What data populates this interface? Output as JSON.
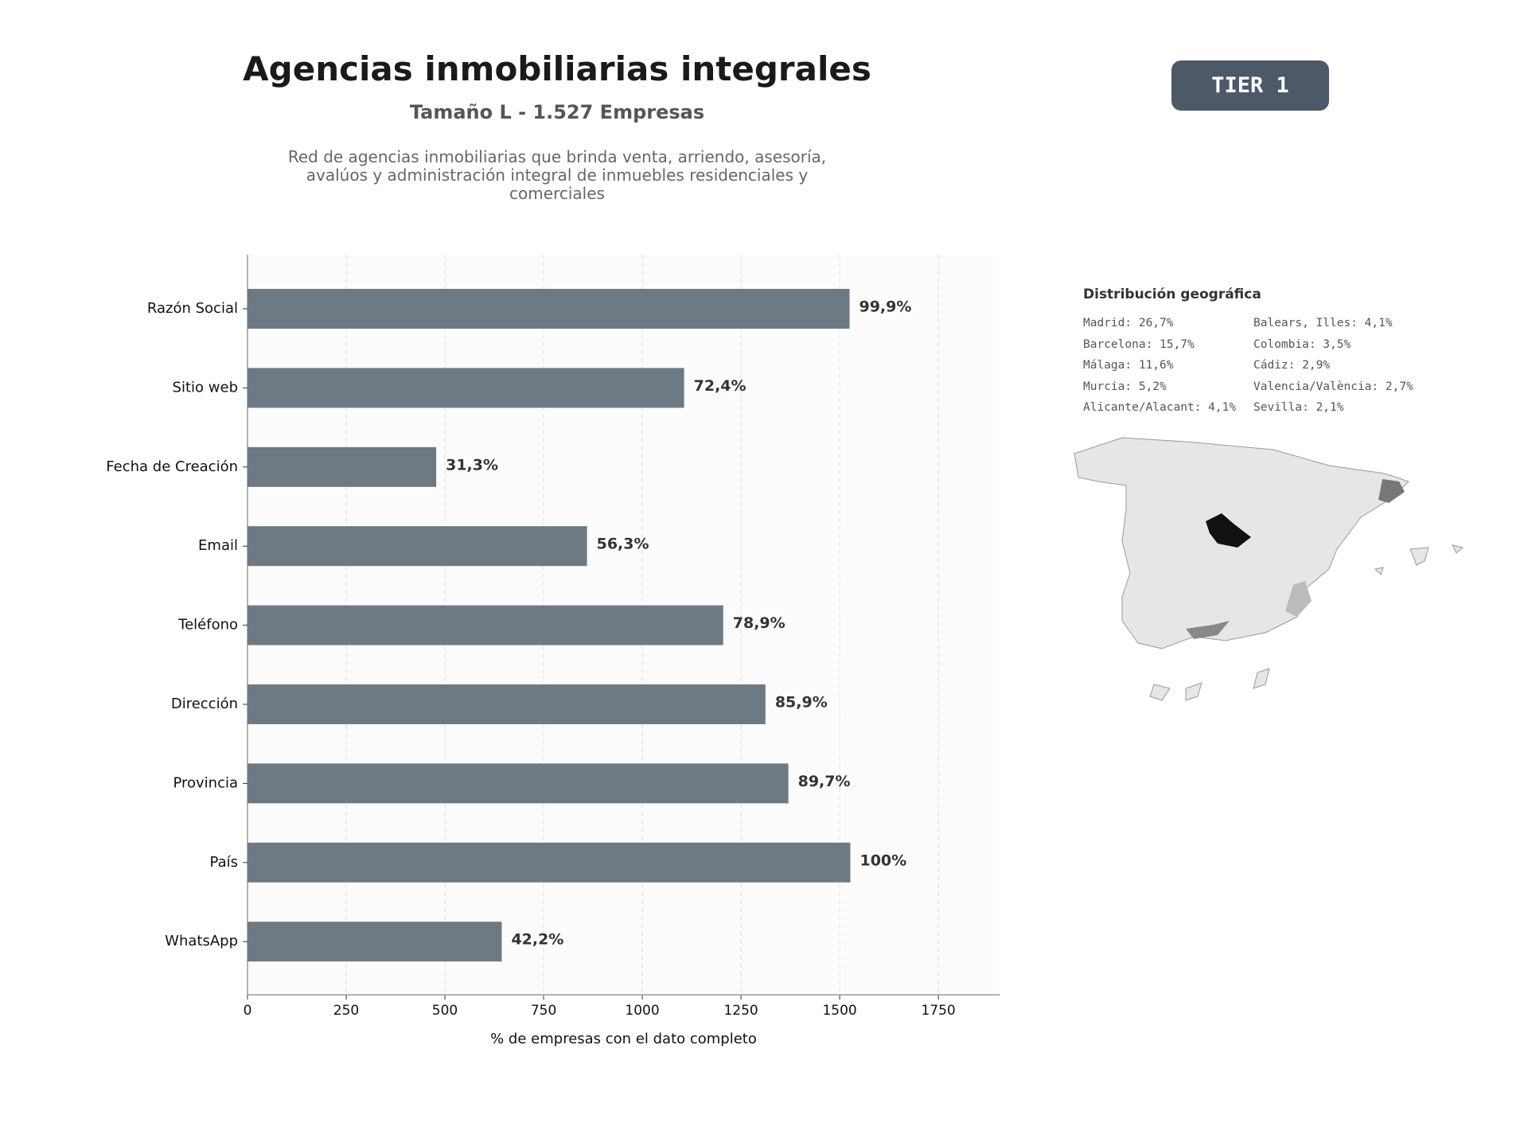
{
  "header": {
    "title": "Agencias inmobiliarias integrales",
    "subtitle": "Tamaño L - 1.527 Empresas",
    "description": "Red de agencias inmobiliarias que brinda venta, arriendo, asesoría, avalúos y administración integral de inmuebles residenciales y comerciales",
    "badge": "TIER 1"
  },
  "geo": {
    "title": "Distribución geográfica",
    "items": [
      "Madrid: 26,7%",
      "Barcelona: 15,7%",
      "Málaga: 11,6%",
      "Murcia: 5,2%",
      "Alicante/Alacant: 4,1%",
      "Balears, Illes: 4,1%",
      "Colombia: 3,5%",
      "Cádiz: 2,9%",
      "Valencia/València: 2,7%",
      "Sevilla: 2,1%"
    ]
  },
  "chart_data": {
    "type": "bar",
    "orientation": "horizontal",
    "categories": [
      "Razón Social",
      "Sitio web",
      "Fecha de Creación",
      "Email",
      "Teléfono",
      "Dirección",
      "Provincia",
      "País",
      "WhatsApp"
    ],
    "values": [
      1525,
      1106,
      478,
      860,
      1205,
      1312,
      1370,
      1527,
      644
    ],
    "value_labels": [
      "99,9%",
      "72,4%",
      "31,3%",
      "56,3%",
      "78,9%",
      "85,9%",
      "89,7%",
      "100%",
      "42,2%"
    ],
    "color": "#6e7a83",
    "xlabel": "% de empresas con el dato completo",
    "xlim": [
      0,
      1905
    ],
    "xticks": [
      0,
      250,
      500,
      750,
      1000,
      1250,
      1500,
      1750
    ],
    "grid": true
  }
}
